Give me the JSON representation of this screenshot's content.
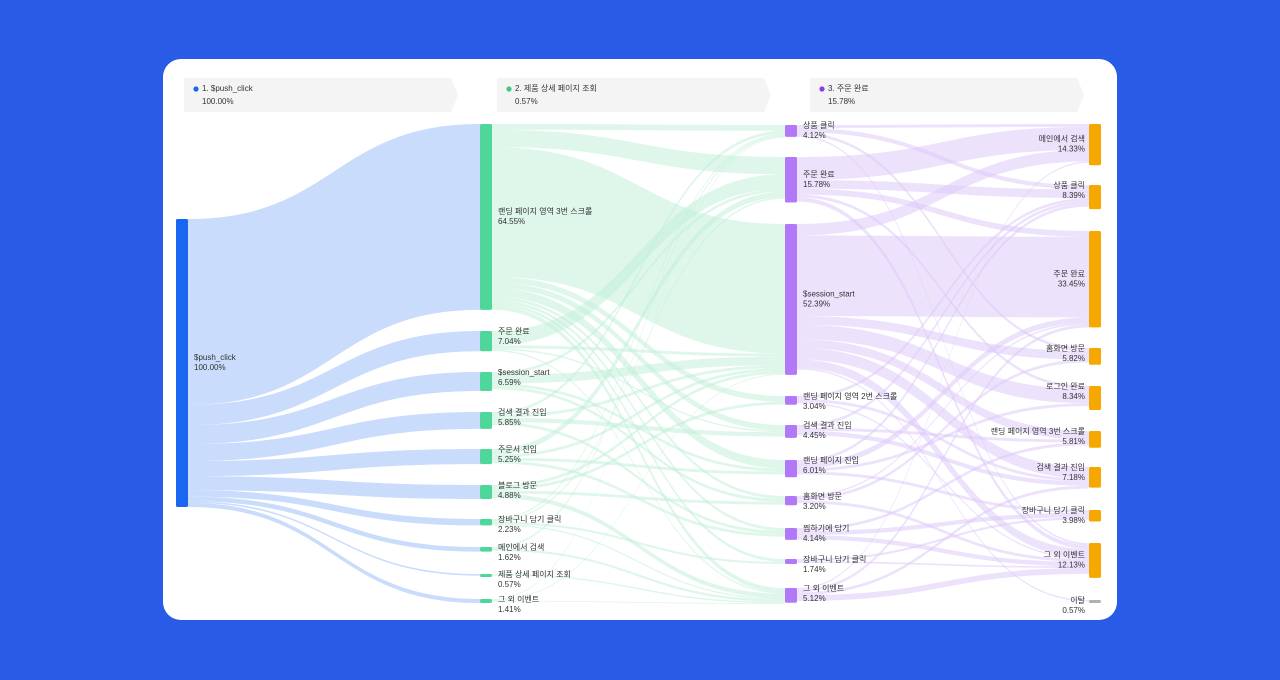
{
  "chart_data": {
    "type": "sankey",
    "steps": [
      {
        "label": "1. $push_click",
        "value_label": "100.00%",
        "value": 100,
        "color": "#1a66f0"
      },
      {
        "label": "2. 제품 상세 페이지 조회",
        "value_label": "0.57%",
        "value": 0.57,
        "color": "#3cc986"
      },
      {
        "label": "3. 주문 완료",
        "value_label": "15.78%",
        "value": 15.78,
        "color": "#8a3ce6"
      }
    ],
    "columns": [
      {
        "color": "#1a66f0",
        "link_color": "#c3d8fb",
        "nodes": [
          {
            "name": "$push_click",
            "value": 100,
            "value_label": "100.00%"
          }
        ]
      },
      {
        "color": "#4fd69a",
        "link_color": "#bdefd6",
        "nodes": [
          {
            "name": "랜딩 페이지 영역 3번 스크롤",
            "value": 64.55,
            "value_label": "64.55%"
          },
          {
            "name": "주문 완료",
            "value": 7.04,
            "value_label": "7.04%"
          },
          {
            "name": "$session_start",
            "value": 6.59,
            "value_label": "6.59%"
          },
          {
            "name": "검색 결과 진입",
            "value": 5.85,
            "value_label": "5.85%"
          },
          {
            "name": "주문서 진입",
            "value": 5.25,
            "value_label": "5.25%"
          },
          {
            "name": "블로그 방문",
            "value": 4.88,
            "value_label": "4.88%"
          },
          {
            "name": "장바구니 담기 클릭",
            "value": 2.23,
            "value_label": "2.23%"
          },
          {
            "name": "메인에서 검색",
            "value": 1.62,
            "value_label": "1.62%"
          },
          {
            "name": "제품 상세 페이지 조회",
            "value": 0.57,
            "value_label": "0.57%"
          },
          {
            "name": "그 외 이벤트",
            "value": 1.41,
            "value_label": "1.41%"
          }
        ]
      },
      {
        "color": "#b278f7",
        "link_color": "#dcc6fa",
        "nodes": [
          {
            "name": "상품 클릭",
            "value": 4.12,
            "value_label": "4.12%"
          },
          {
            "name": "주문 완료",
            "value": 15.78,
            "value_label": "15.78%"
          },
          {
            "name": "$session_start",
            "value": 52.39,
            "value_label": "52.39%"
          },
          {
            "name": "랜딩 페이지 영역 2번 스크롤",
            "value": 3.04,
            "value_label": "3.04%"
          },
          {
            "name": "검색 결과 진입",
            "value": 4.45,
            "value_label": "4.45%"
          },
          {
            "name": "랜딩 페이지 진입",
            "value": 6.01,
            "value_label": "6.01%"
          },
          {
            "name": "홈화면 방문",
            "value": 3.2,
            "value_label": "3.20%"
          },
          {
            "name": "찜하기에 담기",
            "value": 4.14,
            "value_label": "4.14%"
          },
          {
            "name": "장바구니 담기 클릭",
            "value": 1.74,
            "value_label": "1.74%"
          },
          {
            "name": "그 외 이벤트",
            "value": 5.12,
            "value_label": "5.12%"
          }
        ]
      },
      {
        "color": "#f6a800",
        "nodes": [
          {
            "name": "메인에서 검색",
            "value": 14.33,
            "value_label": "14.33%"
          },
          {
            "name": "상품 클릭",
            "value": 8.39,
            "value_label": "8.39%"
          },
          {
            "name": "주문 완료",
            "value": 33.45,
            "value_label": "33.45%"
          },
          {
            "name": "홈화면 방문",
            "value": 5.82,
            "value_label": "5.82%"
          },
          {
            "name": "로그인 완료",
            "value": 8.34,
            "value_label": "8.34%"
          },
          {
            "name": "랜딩 페이지 영역 3번 스크롤",
            "value": 5.81,
            "value_label": "5.81%"
          },
          {
            "name": "검색 결과 진입",
            "value": 7.18,
            "value_label": "7.18%"
          },
          {
            "name": "장바구니 담기 클릭",
            "value": 3.98,
            "value_label": "3.98%"
          },
          {
            "name": "그 외 이벤트",
            "value": 12.13,
            "value_label": "12.13%"
          },
          {
            "name": "이탈",
            "value": 0.57,
            "value_label": "0.57%",
            "color": "#b0b0b0"
          }
        ]
      }
    ],
    "links": [
      [
        {
          "source": 0,
          "target": 0,
          "value": 64.55
        },
        {
          "source": 0,
          "target": 1,
          "value": 7.04
        },
        {
          "source": 0,
          "target": 2,
          "value": 6.59
        },
        {
          "source": 0,
          "target": 3,
          "value": 5.85
        },
        {
          "source": 0,
          "target": 4,
          "value": 5.25
        },
        {
          "source": 0,
          "target": 5,
          "value": 4.88
        },
        {
          "source": 0,
          "target": 6,
          "value": 2.23
        },
        {
          "source": 0,
          "target": 7,
          "value": 1.62
        },
        {
          "source": 0,
          "target": 8,
          "value": 0.57
        },
        {
          "source": 0,
          "target": 9,
          "value": 1.41
        }
      ],
      [
        {
          "source": 0,
          "target": 0,
          "value": 2
        },
        {
          "source": 0,
          "target": 1,
          "value": 6
        },
        {
          "source": 0,
          "target": 2,
          "value": 45
        },
        {
          "source": 0,
          "target": 3,
          "value": 2
        },
        {
          "source": 0,
          "target": 4,
          "value": 2
        },
        {
          "source": 0,
          "target": 5,
          "value": 3
        },
        {
          "source": 0,
          "target": 6,
          "value": 1
        },
        {
          "source": 0,
          "target": 7,
          "value": 1
        },
        {
          "source": 0,
          "target": 8,
          "value": 1
        },
        {
          "source": 0,
          "target": 9,
          "value": 1.5
        },
        {
          "source": 1,
          "target": 1,
          "value": 5
        },
        {
          "source": 1,
          "target": 2,
          "value": 1
        },
        {
          "source": 1,
          "target": 4,
          "value": 0.5
        },
        {
          "source": 1,
          "target": 9,
          "value": 0.5
        },
        {
          "source": 2,
          "target": 1,
          "value": 1
        },
        {
          "source": 2,
          "target": 2,
          "value": 3
        },
        {
          "source": 2,
          "target": 5,
          "value": 1
        },
        {
          "source": 2,
          "target": 6,
          "value": 1
        },
        {
          "source": 3,
          "target": 0,
          "value": 1
        },
        {
          "source": 3,
          "target": 2,
          "value": 1
        },
        {
          "source": 3,
          "target": 4,
          "value": 1.5
        },
        {
          "source": 3,
          "target": 7,
          "value": 1
        },
        {
          "source": 4,
          "target": 1,
          "value": 2
        },
        {
          "source": 4,
          "target": 2,
          "value": 1
        },
        {
          "source": 4,
          "target": 5,
          "value": 1
        },
        {
          "source": 4,
          "target": 7,
          "value": 1
        },
        {
          "source": 5,
          "target": 2,
          "value": 1
        },
        {
          "source": 5,
          "target": 3,
          "value": 1
        },
        {
          "source": 5,
          "target": 6,
          "value": 1
        },
        {
          "source": 5,
          "target": 9,
          "value": 1.5
        },
        {
          "source": 6,
          "target": 0,
          "value": 0.5
        },
        {
          "source": 6,
          "target": 1,
          "value": 0.5
        },
        {
          "source": 6,
          "target": 8,
          "value": 0.7
        },
        {
          "source": 6,
          "target": 9,
          "value": 0.5
        },
        {
          "source": 7,
          "target": 0,
          "value": 0.6
        },
        {
          "source": 7,
          "target": 9,
          "value": 0.8
        },
        {
          "source": 8,
          "target": 9,
          "value": 0.5
        },
        {
          "source": 9,
          "target": 0,
          "value": 0.3
        },
        {
          "source": 9,
          "target": 2,
          "value": 0.3
        },
        {
          "source": 9,
          "target": 9,
          "value": 0.3
        }
      ],
      [
        {
          "source": 0,
          "target": 0,
          "value": 1
        },
        {
          "source": 0,
          "target": 1,
          "value": 1.5
        },
        {
          "source": 0,
          "target": 3,
          "value": 1
        },
        {
          "source": 0,
          "target": 8,
          "value": 0.6
        },
        {
          "source": 1,
          "target": 0,
          "value": 8
        },
        {
          "source": 1,
          "target": 1,
          "value": 3
        },
        {
          "source": 1,
          "target": 2,
          "value": 2
        },
        {
          "source": 1,
          "target": 4,
          "value": 1
        },
        {
          "source": 1,
          "target": 8,
          "value": 1.5
        },
        {
          "source": 2,
          "target": 0,
          "value": 4
        },
        {
          "source": 2,
          "target": 2,
          "value": 28
        },
        {
          "source": 2,
          "target": 3,
          "value": 3
        },
        {
          "source": 2,
          "target": 4,
          "value": 5
        },
        {
          "source": 2,
          "target": 5,
          "value": 3
        },
        {
          "source": 2,
          "target": 6,
          "value": 4
        },
        {
          "source": 2,
          "target": 8,
          "value": 3
        },
        {
          "source": 2,
          "target": 9,
          "value": 0.5
        },
        {
          "source": 3,
          "target": 1,
          "value": 1
        },
        {
          "source": 3,
          "target": 6,
          "value": 1
        },
        {
          "source": 3,
          "target": 8,
          "value": 0.5
        },
        {
          "source": 4,
          "target": 1,
          "value": 1
        },
        {
          "source": 4,
          "target": 5,
          "value": 1
        },
        {
          "source": 4,
          "target": 6,
          "value": 1.5
        },
        {
          "source": 5,
          "target": 1,
          "value": 1
        },
        {
          "source": 5,
          "target": 2,
          "value": 2
        },
        {
          "source": 5,
          "target": 4,
          "value": 1
        },
        {
          "source": 5,
          "target": 7,
          "value": 1
        },
        {
          "source": 6,
          "target": 2,
          "value": 0.5
        },
        {
          "source": 6,
          "target": 3,
          "value": 1
        },
        {
          "source": 6,
          "target": 8,
          "value": 1
        },
        {
          "source": 7,
          "target": 5,
          "value": 1
        },
        {
          "source": 7,
          "target": 7,
          "value": 1.5
        },
        {
          "source": 7,
          "target": 8,
          "value": 1.5
        },
        {
          "source": 8,
          "target": 7,
          "value": 0.8
        },
        {
          "source": 8,
          "target": 8,
          "value": 0.6
        },
        {
          "source": 9,
          "target": 0,
          "value": 0.5
        },
        {
          "source": 9,
          "target": 2,
          "value": 1
        },
        {
          "source": 9,
          "target": 6,
          "value": 1
        },
        {
          "source": 9,
          "target": 8,
          "value": 2
        }
      ]
    ]
  }
}
